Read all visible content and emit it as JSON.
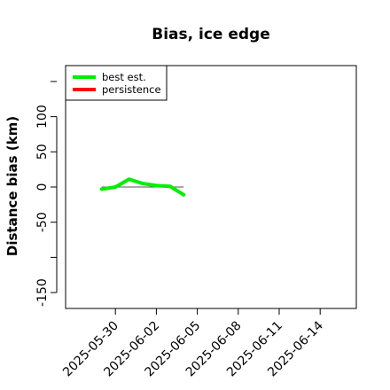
{
  "chart_data": {
    "type": "line",
    "title": "Bias, ice edge",
    "xlabel": "",
    "ylabel": "Distance bias (km)",
    "x_ticks": [
      "2025-05-30",
      "2025-06-02",
      "2025-06-05",
      "2025-06-08",
      "2025-06-11",
      "2025-06-14"
    ],
    "xlim": [
      "2025-05-27",
      "2025-06-16"
    ],
    "y_ticks": [
      -150,
      -50,
      0,
      50,
      100
    ],
    "ylim": [
      -160,
      160
    ],
    "zero_line": true,
    "grid": false,
    "legend_position": "top-left",
    "series": [
      {
        "name": "best est.",
        "color": "#00ee00",
        "x": [
          "2025-05-29",
          "2025-05-30",
          "2025-05-31",
          "2025-06-01",
          "2025-06-02",
          "2025-06-03",
          "2025-06-04"
        ],
        "values": [
          -3,
          0,
          11,
          5,
          2,
          1,
          -11
        ]
      },
      {
        "name": "persistence",
        "color": "#ff0000",
        "x": [],
        "values": []
      }
    ]
  }
}
